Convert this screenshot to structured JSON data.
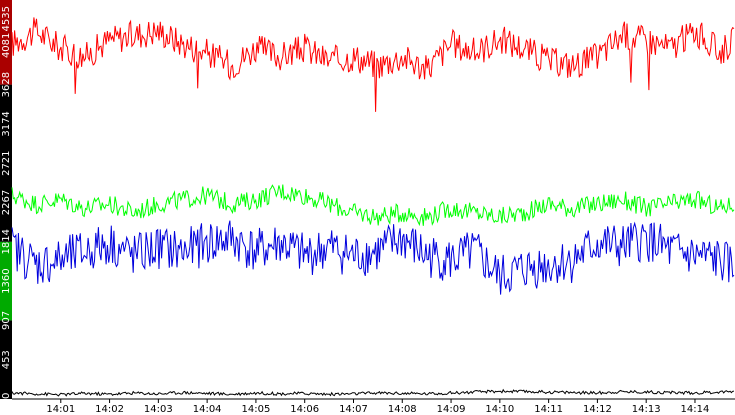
{
  "chart_data": {
    "type": "line",
    "title": "",
    "xlabel": "",
    "ylabel": "",
    "ylim": [
      0,
      4535
    ],
    "xlim": [
      0,
      14.8
    ],
    "grid": false,
    "legend": "none",
    "y_ticks": [
      {
        "value": 0,
        "label": "0"
      },
      {
        "value": 453,
        "label": "453"
      },
      {
        "value": 907,
        "label": "907"
      },
      {
        "value": 1360,
        "label": "1360"
      },
      {
        "value": 1814,
        "label": "1814"
      },
      {
        "value": 2267,
        "label": "2267"
      },
      {
        "value": 2721,
        "label": "2721"
      },
      {
        "value": 3174,
        "label": "3174"
      },
      {
        "value": 3628,
        "label": "3628"
      },
      {
        "value": 4081,
        "label": "4081"
      },
      {
        "value": 4535,
        "label": "4535"
      }
    ],
    "x_ticks": [
      {
        "value": 1,
        "label": "14:01"
      },
      {
        "value": 2,
        "label": "14:02"
      },
      {
        "value": 3,
        "label": "14:03"
      },
      {
        "value": 4,
        "label": "14:04"
      },
      {
        "value": 5,
        "label": "14:05"
      },
      {
        "value": 6,
        "label": "14:06"
      },
      {
        "value": 7,
        "label": "14:07"
      },
      {
        "value": 8,
        "label": "14:08"
      },
      {
        "value": 9,
        "label": "14:09"
      },
      {
        "value": 10,
        "label": "14:10"
      },
      {
        "value": 11,
        "label": "14:11"
      },
      {
        "value": 12,
        "label": "14:12"
      },
      {
        "value": 13,
        "label": "14:13"
      },
      {
        "value": 14,
        "label": "14:14"
      }
    ],
    "y_axis_band_colors": [
      {
        "from": 0,
        "to": 907,
        "color": "#000000"
      },
      {
        "from": 907,
        "to": 1814,
        "color": "#00aa00"
      },
      {
        "from": 1814,
        "to": 3628,
        "color": "#000000"
      },
      {
        "from": 3628,
        "to": 4535,
        "color": "#aa0000"
      }
    ],
    "series": [
      {
        "color": "#ff0000",
        "x": [
          0,
          0.5,
          1,
          1.5,
          2,
          2.5,
          3,
          3.5,
          4,
          4.5,
          5,
          5.5,
          6,
          6.5,
          7,
          7.5,
          8,
          8.5,
          9,
          9.5,
          10,
          10.5,
          11,
          11.5,
          12,
          12.5,
          13,
          13.5,
          14,
          14.5,
          14.8
        ],
        "y": [
          4100,
          4250,
          4050,
          3950,
          4150,
          4200,
          4250,
          4100,
          4000,
          3850,
          4050,
          3950,
          4050,
          3900,
          3950,
          3850,
          3950,
          3800,
          4100,
          4000,
          4150,
          4050,
          3900,
          3850,
          3950,
          4200,
          4150,
          4050,
          4250,
          4000,
          4150
        ]
      },
      {
        "color": "#00ff00",
        "x": [
          0,
          0.5,
          1,
          1.5,
          2,
          2.5,
          3,
          3.5,
          4,
          4.5,
          5,
          5.5,
          6,
          6.5,
          7,
          7.5,
          8,
          8.5,
          9,
          9.5,
          10,
          10.5,
          11,
          11.5,
          12,
          12.5,
          13,
          13.5,
          14,
          14.5,
          14.8
        ],
        "y": [
          2350,
          2250,
          2300,
          2200,
          2250,
          2150,
          2250,
          2300,
          2350,
          2250,
          2300,
          2400,
          2350,
          2250,
          2150,
          2100,
          2150,
          2100,
          2200,
          2150,
          2100,
          2150,
          2250,
          2200,
          2250,
          2300,
          2200,
          2250,
          2300,
          2200,
          2250
        ]
      },
      {
        "color": "#0000dd",
        "x": [
          0,
          0.5,
          1,
          1.5,
          2,
          2.5,
          3,
          3.5,
          4,
          4.5,
          5,
          5.5,
          6,
          6.5,
          7,
          7.5,
          8,
          8.5,
          9,
          9.5,
          10,
          10.5,
          11,
          11.5,
          12,
          12.5,
          13,
          13.5,
          14,
          14.5,
          14.8
        ],
        "y": [
          1750,
          1550,
          1600,
          1700,
          1800,
          1650,
          1750,
          1700,
          1800,
          1850,
          1700,
          1800,
          1650,
          1750,
          1650,
          1700,
          1850,
          1650,
          1600,
          1700,
          1400,
          1500,
          1550,
          1600,
          1800,
          1750,
          1850,
          1700,
          1650,
          1600,
          1500
        ]
      },
      {
        "color": "#000000",
        "x": [
          0,
          0.5,
          1,
          1.5,
          2,
          2.5,
          3,
          3.5,
          4,
          4.5,
          5,
          5.5,
          6,
          6.5,
          7,
          7.5,
          8,
          8.5,
          9,
          9.5,
          10,
          10.5,
          11,
          11.5,
          12,
          12.5,
          13,
          13.5,
          14,
          14.5,
          14.8
        ],
        "y": [
          70,
          60,
          50,
          65,
          55,
          70,
          60,
          75,
          65,
          55,
          70,
          60,
          65,
          55,
          60,
          70,
          65,
          60,
          70,
          80,
          90,
          85,
          80,
          75,
          70,
          85,
          80,
          75,
          70,
          80,
          90
        ]
      }
    ]
  }
}
